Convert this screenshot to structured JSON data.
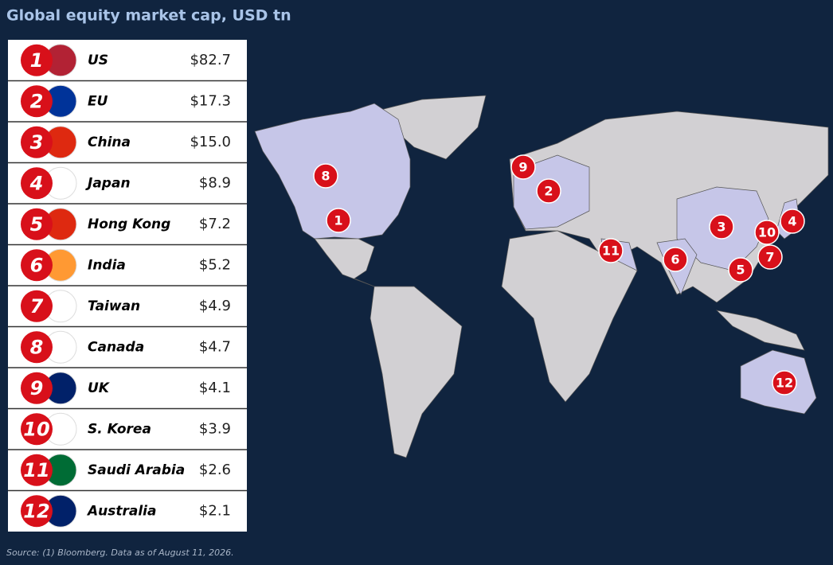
{
  "title": "Global equity market cap, USD tn",
  "table": {
    "rows": [
      {
        "rank": "1",
        "country": "US",
        "value": "$82.7"
      },
      {
        "rank": "2",
        "country": "EU",
        "value": "$17.3"
      },
      {
        "rank": "3",
        "country": "China",
        "value": "$15.0"
      },
      {
        "rank": "4",
        "country": "Japan",
        "value": "$8.9"
      },
      {
        "rank": "5",
        "country": "Hong Kong",
        "value": "$7.2"
      },
      {
        "rank": "6",
        "country": "India",
        "value": "$5.2"
      },
      {
        "rank": "7",
        "country": "Taiwan",
        "value": "$4.9"
      },
      {
        "rank": "8",
        "country": "Canada",
        "value": "$4.7"
      },
      {
        "rank": "9",
        "country": "UK",
        "value": "$4.1"
      },
      {
        "rank": "10",
        "country": "S. Korea",
        "value": "$3.9"
      },
      {
        "rank": "11",
        "country": "Saudi Arabia",
        "value": "$2.6"
      },
      {
        "rank": "12",
        "country": "Australia",
        "value": "$2.1"
      }
    ]
  },
  "source": "Source: (1) Bloomberg. Data as of August 11, 2026."
}
